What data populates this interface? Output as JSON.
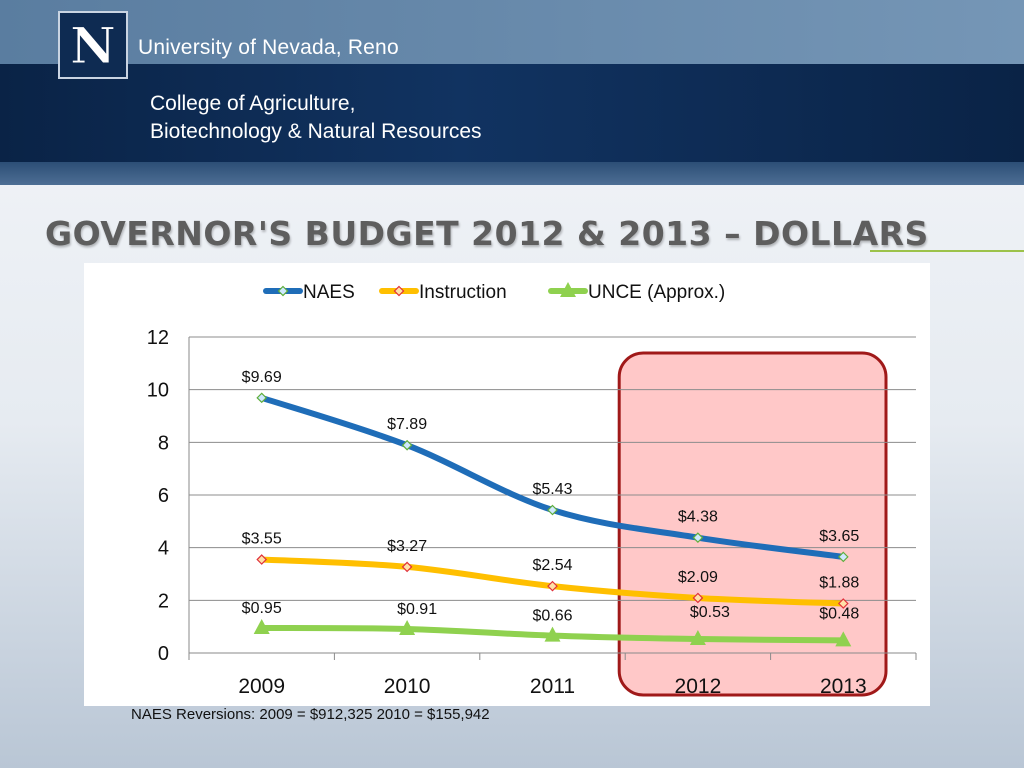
{
  "header": {
    "logo_letter": "N",
    "university": "University of Nevada, Reno",
    "college_line1": "College of Agriculture,",
    "college_line2": "Biotechnology & Natural Resources"
  },
  "slide": {
    "title": "Governor's Budget 2012 & 2013 – Dollars",
    "footnote": "NAES Reversions: 2009 = $912,325  2010 = $155,942"
  },
  "colors": {
    "naes": "#1f6db8",
    "instruction": "#ffbf00",
    "unce": "#8fd14f",
    "highlight_fill": "#ffc8c8",
    "highlight_stroke": "#a01919"
  },
  "chart_data": {
    "type": "line",
    "title": "",
    "xlabel": "",
    "ylabel": "",
    "categories": [
      "2009",
      "2010",
      "2011",
      "2012",
      "2013"
    ],
    "ylim": [
      0,
      12
    ],
    "yticks": [
      0,
      2,
      4,
      6,
      8,
      10,
      12
    ],
    "grid": true,
    "legend": "top",
    "series": [
      {
        "name": "NAES",
        "values": [
          9.69,
          7.89,
          5.43,
          4.38,
          3.65
        ],
        "labels": [
          "$9.69",
          "$7.89",
          "$5.43",
          "$4.38",
          "$3.65"
        ],
        "marker": "diamond",
        "color_key": "naes"
      },
      {
        "name": "Instruction",
        "values": [
          3.55,
          3.27,
          2.54,
          2.09,
          1.88
        ],
        "labels": [
          "$3.55",
          "$3.27",
          "$2.54",
          "$2.09",
          "$1.88"
        ],
        "marker": "diamond",
        "color_key": "instruction"
      },
      {
        "name": "UNCE (Approx.)",
        "values": [
          0.95,
          0.91,
          0.66,
          0.53,
          0.48
        ],
        "labels": [
          "$0.95",
          "$0.91",
          "$0.66",
          "$0.53",
          "$0.48"
        ],
        "marker": "triangle",
        "color_key": "unce"
      }
    ],
    "highlight": {
      "categories": [
        "2012",
        "2013"
      ]
    }
  }
}
